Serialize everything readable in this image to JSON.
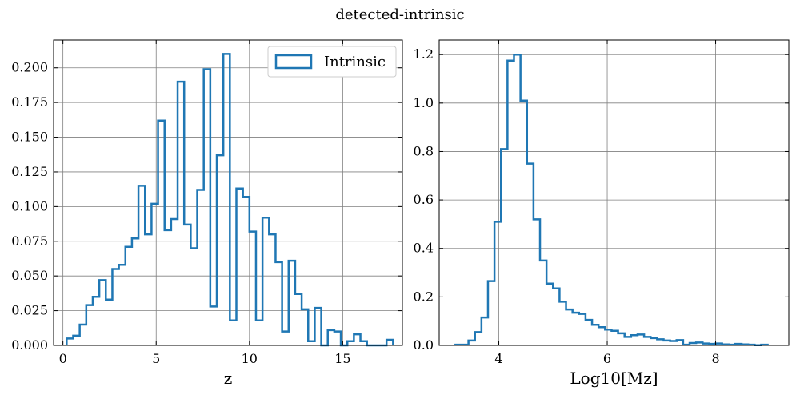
{
  "figure": {
    "suptitle": "detected-intrinsic"
  },
  "colors": {
    "series": "#1f77b4",
    "grid": "#808080",
    "axes": "#000000"
  },
  "chart_data": [
    {
      "type": "histogram",
      "xlabel": "z",
      "ylabel": "",
      "xlim": [
        -0.5,
        18.2
      ],
      "ylim": [
        0,
        0.22
      ],
      "xticks": [
        0,
        5,
        10,
        15
      ],
      "yticks": [
        0,
        0.025,
        0.05,
        0.075,
        0.1,
        0.125,
        0.15,
        0.175,
        0.2
      ],
      "ytick_labels": [
        "0.000",
        "0.025",
        "0.050",
        "0.075",
        "0.100",
        "0.125",
        "0.150",
        "0.175",
        "0.200"
      ],
      "grid": true,
      "legend": {
        "location": "top-right",
        "entries": [
          "Intrinsic"
        ]
      },
      "series": [
        {
          "name": "Intrinsic",
          "bin_edges": [
            0.2,
            0.55,
            0.9,
            1.25,
            1.6,
            1.95,
            2.3,
            2.65,
            3.0,
            3.35,
            3.7,
            4.05,
            4.4,
            4.75,
            5.1,
            5.45,
            5.8,
            6.15,
            6.5,
            6.85,
            7.2,
            7.55,
            7.9,
            8.25,
            8.6,
            8.95,
            9.3,
            9.65,
            10.0,
            10.35,
            10.7,
            11.05,
            11.4,
            11.75,
            12.1,
            12.45,
            12.8,
            13.15,
            13.5,
            13.85,
            14.2,
            14.55,
            14.9,
            15.25,
            15.6,
            15.95,
            16.3,
            16.65,
            17.0,
            17.35,
            17.7
          ],
          "values": [
            0.005,
            0.007,
            0.015,
            0.029,
            0.035,
            0.047,
            0.033,
            0.055,
            0.058,
            0.071,
            0.077,
            0.115,
            0.08,
            0.102,
            0.162,
            0.083,
            0.091,
            0.19,
            0.087,
            0.07,
            0.112,
            0.199,
            0.028,
            0.137,
            0.21,
            0.018,
            0.113,
            0.107,
            0.082,
            0.018,
            0.092,
            0.08,
            0.06,
            0.01,
            0.061,
            0.037,
            0.026,
            0.003,
            0.027,
            0.0,
            0.011,
            0.01,
            0.0,
            0.003,
            0.008,
            0.003,
            0.0,
            0.0,
            0.0,
            0.004
          ]
        }
      ]
    },
    {
      "type": "histogram",
      "xlabel": "Log10[Mz]",
      "ylabel": "",
      "xlim": [
        2.9,
        9.35
      ],
      "ylim": [
        0,
        1.26
      ],
      "xticks": [
        4,
        6,
        8
      ],
      "yticks": [
        0,
        0.2,
        0.4,
        0.6,
        0.8,
        1.0,
        1.2
      ],
      "ytick_labels": [
        "0.0",
        "0.2",
        "0.4",
        "0.6",
        "0.8",
        "1.0",
        "1.2"
      ],
      "grid": true,
      "series": [
        {
          "name": "",
          "bin_edges": [
            3.2,
            3.32,
            3.44,
            3.56,
            3.68,
            3.8,
            3.92,
            4.04,
            4.16,
            4.28,
            4.4,
            4.52,
            4.64,
            4.76,
            4.88,
            5.0,
            5.12,
            5.24,
            5.36,
            5.48,
            5.6,
            5.72,
            5.84,
            5.96,
            6.08,
            6.2,
            6.32,
            6.44,
            6.56,
            6.68,
            6.8,
            6.92,
            7.04,
            7.16,
            7.28,
            7.4,
            7.52,
            7.64,
            7.76,
            7.88,
            8.0,
            8.12,
            8.24,
            8.36,
            8.48,
            8.6,
            8.72,
            8.84,
            8.96
          ],
          "values": [
            0.003,
            0.003,
            0.02,
            0.055,
            0.115,
            0.265,
            0.51,
            0.81,
            1.175,
            1.2,
            1.01,
            0.75,
            0.52,
            0.35,
            0.255,
            0.235,
            0.18,
            0.148,
            0.135,
            0.13,
            0.105,
            0.085,
            0.075,
            0.065,
            0.06,
            0.05,
            0.035,
            0.042,
            0.045,
            0.035,
            0.03,
            0.025,
            0.02,
            0.018,
            0.022,
            0.003,
            0.01,
            0.012,
            0.008,
            0.006,
            0.008,
            0.004,
            0.003,
            0.006,
            0.004,
            0.003,
            0.001,
            0.003
          ]
        }
      ]
    }
  ]
}
